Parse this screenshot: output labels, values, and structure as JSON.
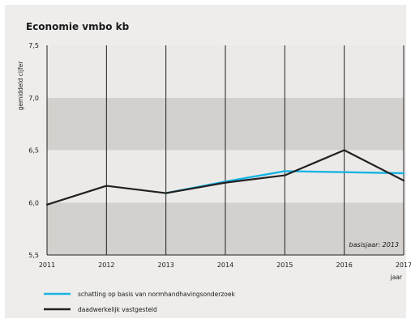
{
  "chart_data": {
    "type": "line",
    "title": "Economie vmbo kb",
    "ylabel": "gemiddeld cijfer",
    "xlabel": "jaar",
    "x": [
      "2011",
      "2012",
      "2013",
      "2014",
      "2015",
      "2016",
      "2017"
    ],
    "ylim": [
      5.5,
      7.5
    ],
    "yticks": [
      "5,5",
      "6,0",
      "6,5",
      "7,0",
      "7,5"
    ],
    "ytick_values": [
      5.5,
      6.0,
      6.5,
      7.0,
      7.5
    ],
    "grid": "vertical lines at each year",
    "bands": [
      {
        "from": 5.5,
        "to": 6.0,
        "color": "#d3d0cd"
      },
      {
        "from": 6.0,
        "to": 6.5,
        "color": "#eceae8"
      },
      {
        "from": 6.5,
        "to": 7.0,
        "color": "#d3d0cd"
      },
      {
        "from": 7.0,
        "to": 7.5,
        "color": "#eceae8"
      }
    ],
    "annotation": "basisjaar: 2013",
    "legend_position": "bottom-left",
    "series": [
      {
        "name": "schatting op basis van normhandhavingsonderzoek",
        "color": "#18b4e2",
        "values": [
          null,
          null,
          6.09,
          6.2,
          6.3,
          6.29,
          6.28
        ]
      },
      {
        "name": "daadwerkelijk vastgesteld",
        "color": "#231f20",
        "values": [
          5.98,
          6.16,
          6.09,
          6.19,
          6.26,
          6.5,
          6.21
        ]
      }
    ]
  }
}
